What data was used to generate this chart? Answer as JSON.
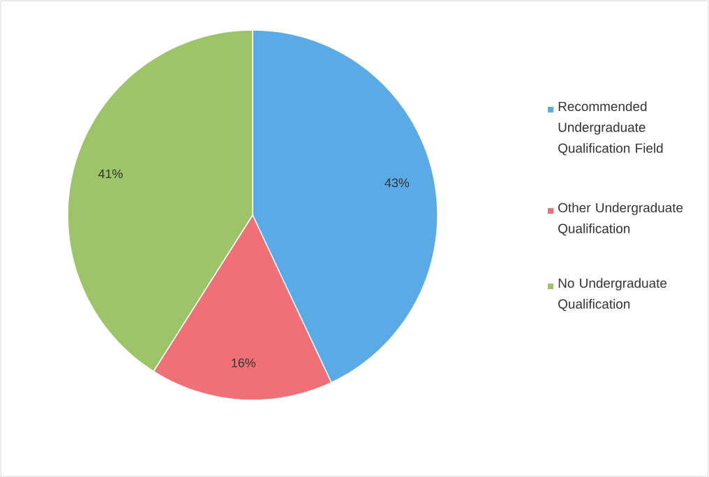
{
  "chart_data": {
    "type": "pie",
    "categories": [
      "Recommended Undergraduate Qualification Field",
      "Other Undergraduate Qualification",
      "No Undergraduate Qualification"
    ],
    "values": [
      43,
      16,
      41
    ],
    "colors": [
      "#5aaae6",
      "#ef7077",
      "#9dc468"
    ],
    "value_labels": [
      "43%",
      "16%",
      "41%"
    ],
    "legend": "right"
  }
}
